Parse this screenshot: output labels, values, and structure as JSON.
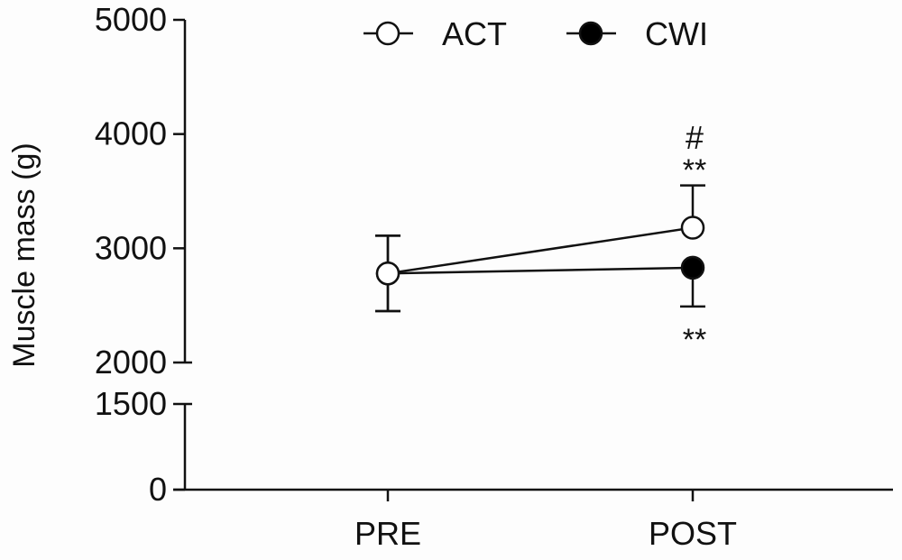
{
  "chart_data": {
    "type": "line",
    "title": "",
    "xlabel": "",
    "ylabel": "Muscle mass (g)",
    "categories": [
      "PRE",
      "POST"
    ],
    "y_axis": {
      "broken": true,
      "segments": [
        [
          0,
          1500
        ],
        [
          2000,
          5000
        ]
      ],
      "ticks": [
        0,
        1500,
        2000,
        3000,
        4000,
        5000
      ],
      "tick_labels": [
        "0",
        "1500",
        "2000",
        "3000",
        "4000",
        "5000"
      ]
    },
    "grid": false,
    "legend_placement": "top",
    "series": [
      {
        "name": "ACT",
        "marker": "open-circle",
        "values": [
          2780,
          3180
        ],
        "error": [
          330,
          370
        ],
        "error_direction": [
          "both",
          "up"
        ]
      },
      {
        "name": "CWI",
        "marker": "filled-circle",
        "values": [
          2780,
          2830
        ],
        "error": [
          330,
          340
        ],
        "error_direction": [
          "both",
          "down"
        ]
      }
    ],
    "annotations": [
      {
        "text": "#",
        "category": "POST",
        "series": "ACT",
        "position": "above"
      },
      {
        "text": "**",
        "category": "POST",
        "series": "ACT",
        "position": "above"
      },
      {
        "text": "**",
        "category": "POST",
        "series": "CWI",
        "position": "below"
      }
    ],
    "colors": {
      "line": "#111111",
      "open_fill": "#ffffff",
      "filled": "#000000"
    }
  }
}
